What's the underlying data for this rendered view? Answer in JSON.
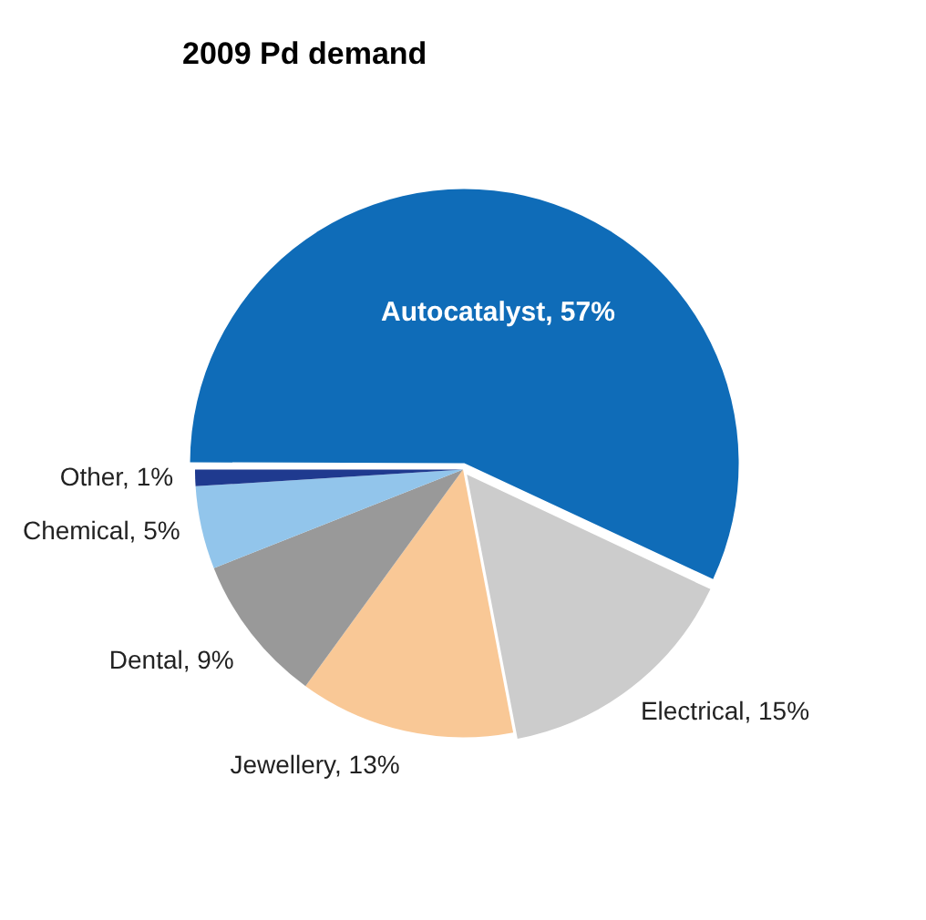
{
  "chart_data": {
    "type": "pie",
    "title": "2009 Pd demand",
    "categories": [
      "Autocatalyst",
      "Electrical",
      "Jewellery",
      "Dental",
      "Chemical",
      "Other"
    ],
    "values": [
      57,
      15,
      13,
      9,
      5,
      1
    ],
    "colors": [
      "#0f6cb8",
      "#cccccc",
      "#f9c896",
      "#999999",
      "#92c5eb",
      "#1f3a8f"
    ],
    "value_labels": [
      "57%",
      "15%",
      "13%",
      "9%",
      "5%",
      "1%"
    ],
    "legend": false
  }
}
